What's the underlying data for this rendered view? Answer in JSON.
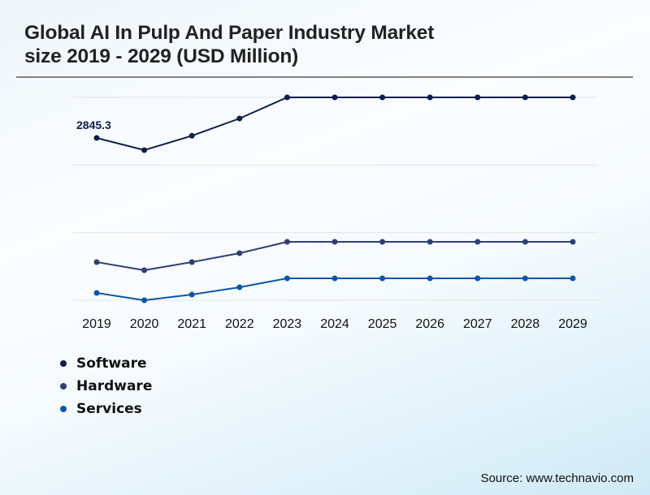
{
  "header": {
    "title_line1": "Global AI In Pulp And Paper Industry Market",
    "title_line2": "size 2019 - 2029 (USD Million)"
  },
  "source": "Source: www.technavio.com",
  "chart_data": {
    "type": "line",
    "title": "Global AI In Pulp And Paper Industry Market size 2019 - 2029 (USD Million)",
    "xlabel": "",
    "ylabel": "",
    "x": [
      "2019",
      "2020",
      "2021",
      "2022",
      "2023",
      "2024",
      "2025",
      "2026",
      "2027",
      "2028",
      "2029"
    ],
    "ylim": [
      0,
      3557
    ],
    "grid": true,
    "gridlines": 4,
    "legend_position": "bottom-left",
    "series": [
      {
        "name": "Software",
        "color": "#0d1f4a",
        "values": [
          2845.3,
          2632,
          2884,
          3187,
          3557,
          3557,
          3557,
          3557,
          3557,
          3557,
          3557
        ]
      },
      {
        "name": "Hardware",
        "color": "#2f3f74",
        "values": [
          669,
          526,
          669,
          825,
          1024,
          1024,
          1024,
          1024,
          1024,
          1024,
          1024
        ]
      },
      {
        "name": "Services",
        "color": "#0c57a5",
        "values": [
          128,
          0,
          100,
          228,
          384,
          384,
          384,
          384,
          384,
          384,
          384
        ]
      }
    ],
    "annotations": [
      {
        "series": "Software",
        "x": "2019",
        "text": "2845.3"
      }
    ]
  }
}
